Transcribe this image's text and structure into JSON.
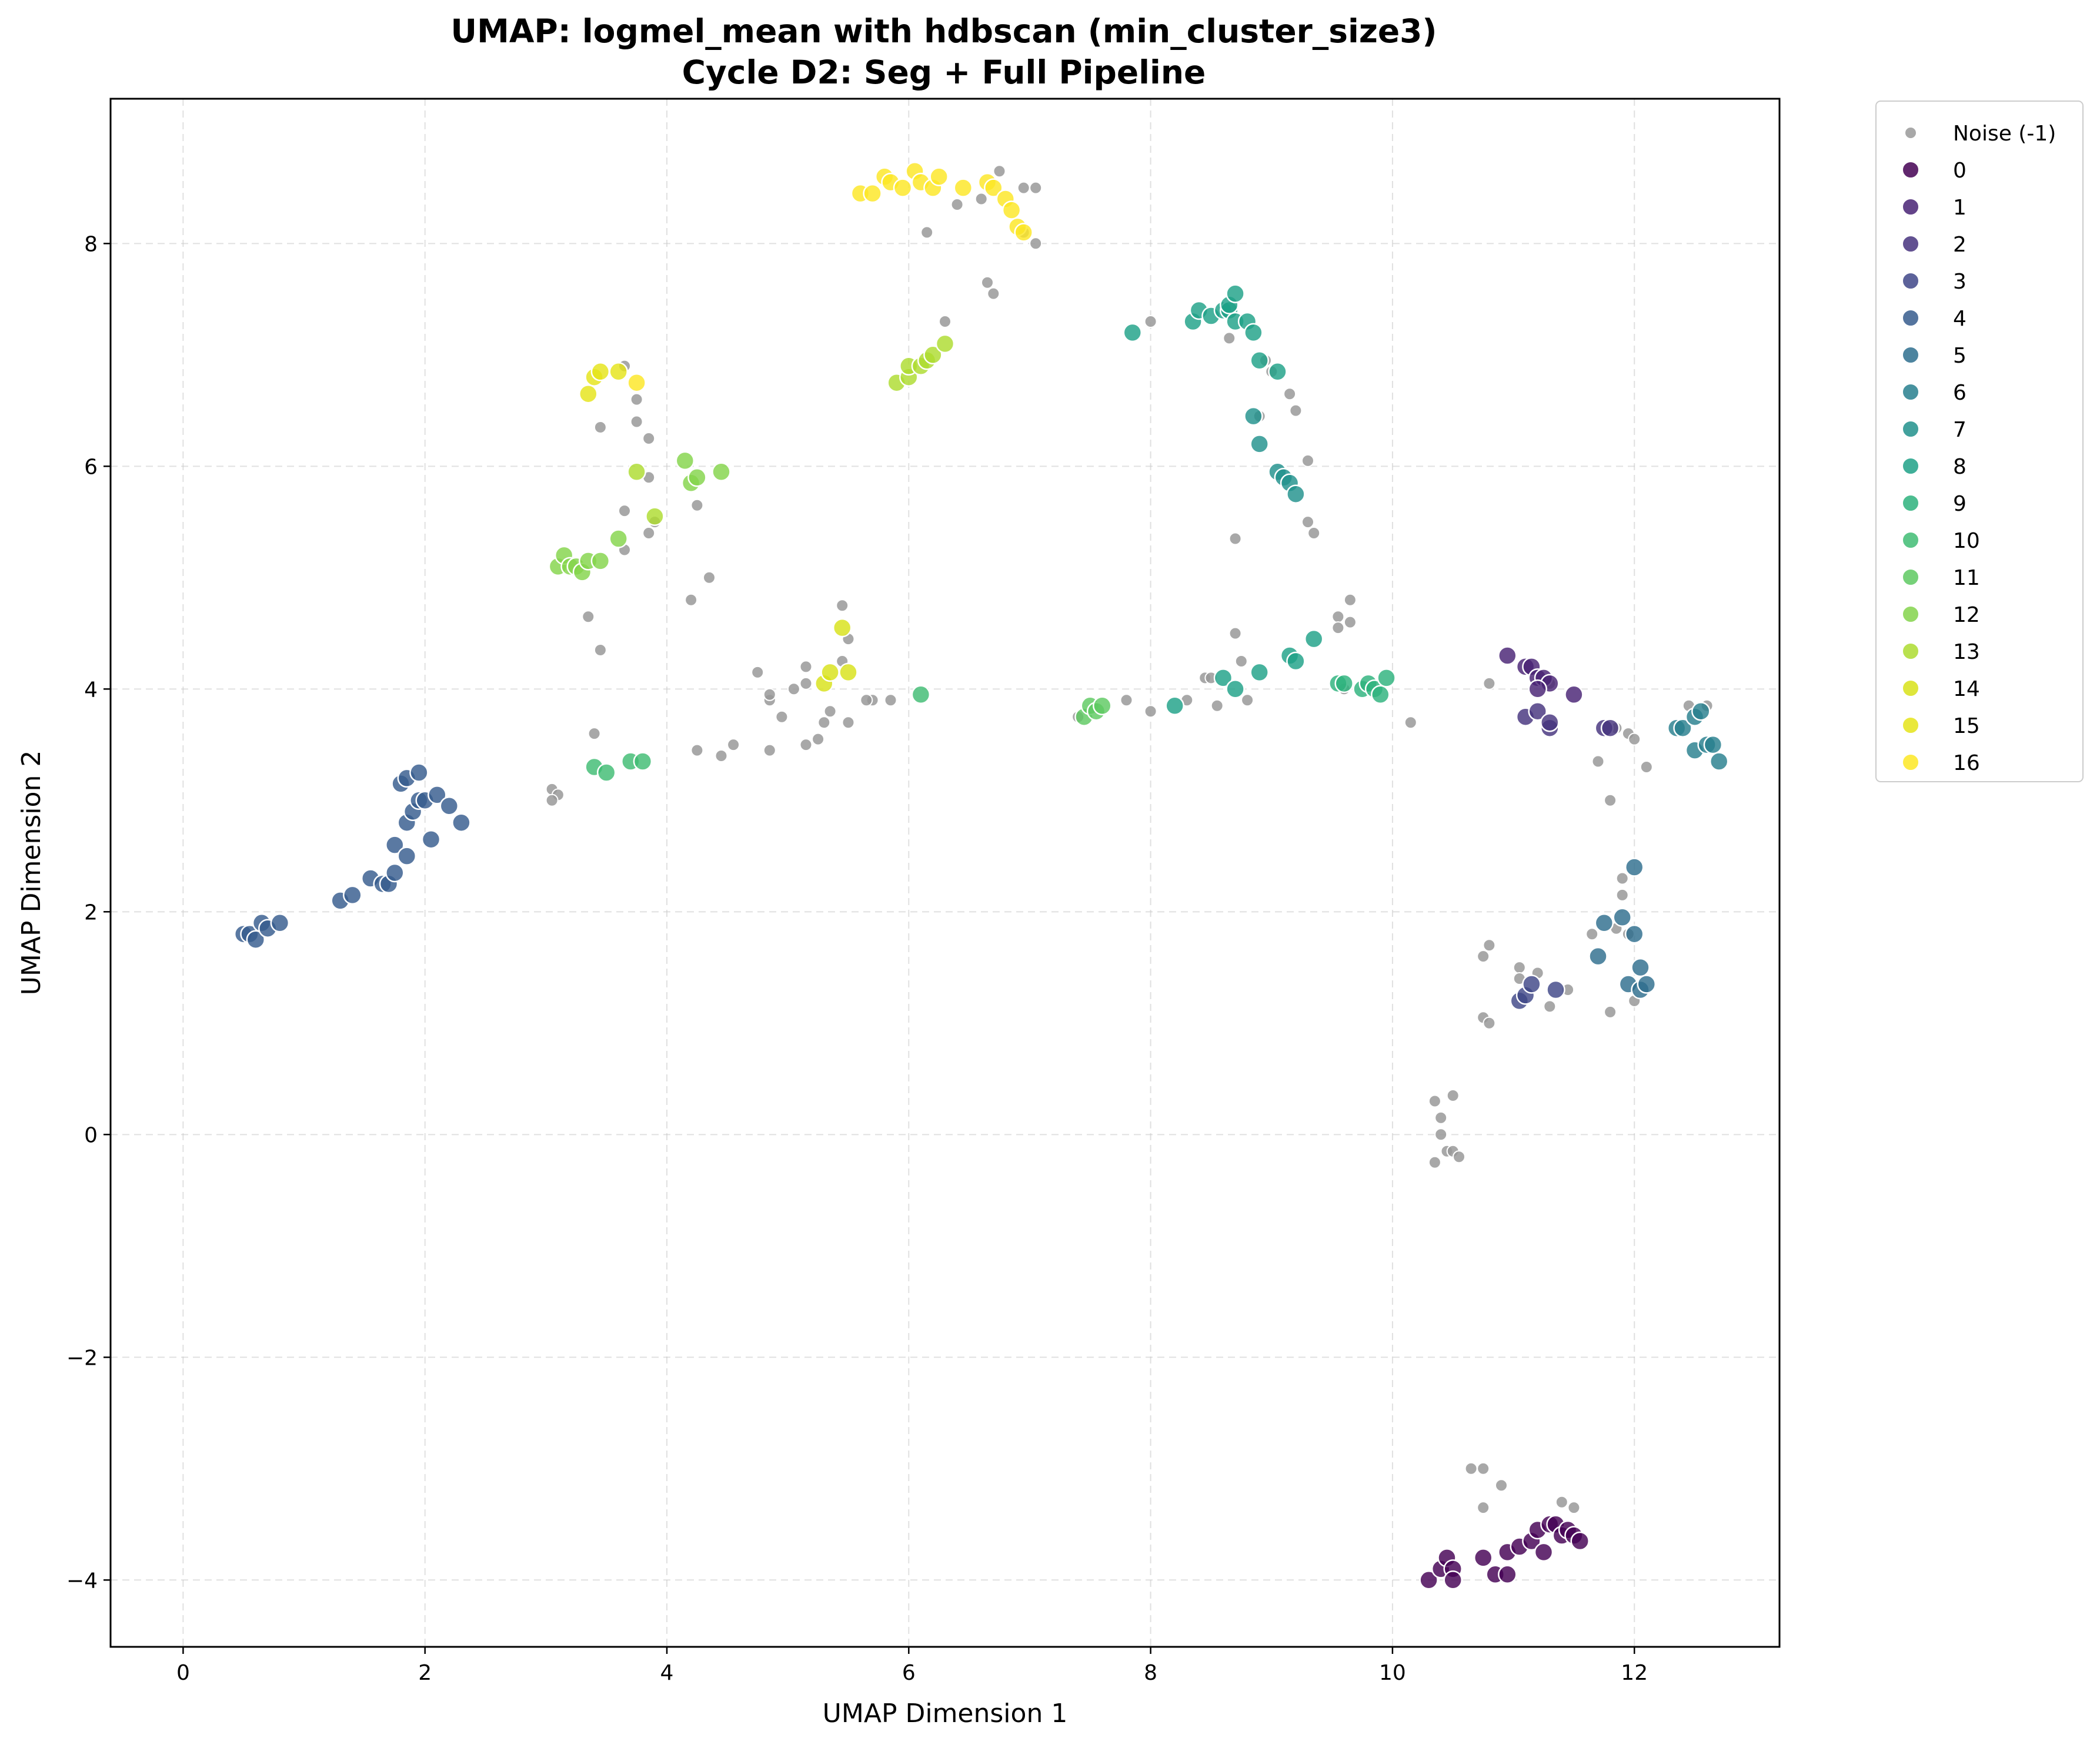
{
  "chart_data": {
    "type": "scatter",
    "title": "UMAP: logmel_mean with hdbscan (min_cluster_size3)",
    "subtitle": "Cycle D2: Seg + Full Pipeline",
    "xlabel": "UMAP Dimension 1",
    "ylabel": "UMAP Dimension 2",
    "xlim": [
      -0.6,
      13.2
    ],
    "ylim": [
      -4.6,
      9.3
    ],
    "xticks": [
      0,
      2,
      4,
      6,
      8,
      10,
      12
    ],
    "yticks": [
      -4,
      -2,
      0,
      2,
      4,
      6,
      8
    ],
    "grid": true,
    "legend_position": "outside-right",
    "series": [
      {
        "name": "Noise (-1)",
        "color": "#999999",
        "points": [
          [
            6.75,
            8.65
          ],
          [
            6.95,
            8.5
          ],
          [
            7.05,
            8.5
          ],
          [
            6.6,
            8.4
          ],
          [
            6.4,
            8.35
          ],
          [
            6.15,
            8.1
          ],
          [
            6.95,
            8.1
          ],
          [
            7.05,
            8.0
          ],
          [
            6.65,
            7.65
          ],
          [
            6.7,
            7.55
          ],
          [
            6.3,
            7.3
          ],
          [
            8.0,
            7.3
          ],
          [
            8.65,
            7.15
          ],
          [
            8.95,
            6.95
          ],
          [
            9.0,
            6.85
          ],
          [
            9.15,
            6.65
          ],
          [
            9.2,
            6.5
          ],
          [
            8.9,
            6.45
          ],
          [
            9.3,
            6.05
          ],
          [
            9.3,
            5.5
          ],
          [
            9.35,
            5.4
          ],
          [
            8.7,
            5.35
          ],
          [
            3.65,
            6.9
          ],
          [
            3.75,
            6.6
          ],
          [
            3.75,
            6.4
          ],
          [
            3.45,
            6.35
          ],
          [
            3.85,
            6.25
          ],
          [
            3.85,
            5.9
          ],
          [
            3.65,
            5.6
          ],
          [
            3.9,
            5.5
          ],
          [
            3.85,
            5.4
          ],
          [
            3.65,
            5.25
          ],
          [
            4.25,
            5.65
          ],
          [
            4.35,
            5.0
          ],
          [
            4.2,
            4.8
          ],
          [
            3.35,
            4.65
          ],
          [
            3.45,
            4.35
          ],
          [
            3.4,
            3.6
          ],
          [
            3.05,
            3.1
          ],
          [
            3.1,
            3.05
          ],
          [
            3.05,
            3.0
          ],
          [
            5.45,
            4.75
          ],
          [
            5.5,
            4.45
          ],
          [
            5.45,
            4.25
          ],
          [
            5.15,
            4.2
          ],
          [
            4.75,
            4.15
          ],
          [
            5.15,
            4.05
          ],
          [
            5.05,
            4.0
          ],
          [
            4.85,
            3.9
          ],
          [
            4.85,
            3.95
          ],
          [
            4.95,
            3.75
          ],
          [
            5.35,
            3.8
          ],
          [
            5.3,
            3.7
          ],
          [
            5.5,
            3.7
          ],
          [
            5.7,
            3.9
          ],
          [
            5.85,
            3.9
          ],
          [
            4.25,
            3.45
          ],
          [
            4.45,
            3.4
          ],
          [
            4.55,
            3.5
          ],
          [
            4.85,
            3.45
          ],
          [
            5.15,
            3.5
          ],
          [
            5.25,
            3.55
          ],
          [
            5.65,
            3.9
          ],
          [
            7.4,
            3.75
          ],
          [
            7.8,
            3.9
          ],
          [
            8.0,
            3.8
          ],
          [
            8.3,
            3.9
          ],
          [
            8.45,
            4.1
          ],
          [
            8.5,
            4.1
          ],
          [
            8.55,
            3.85
          ],
          [
            8.7,
            4.5
          ],
          [
            8.75,
            4.25
          ],
          [
            8.8,
            3.9
          ],
          [
            9.65,
            4.8
          ],
          [
            9.55,
            4.65
          ],
          [
            9.55,
            4.55
          ],
          [
            9.65,
            4.6
          ],
          [
            9.6,
            4.0
          ],
          [
            10.15,
            3.7
          ],
          [
            10.8,
            4.05
          ],
          [
            11.3,
            4.05
          ],
          [
            11.7,
            3.35
          ],
          [
            11.8,
            3.0
          ],
          [
            11.85,
            3.65
          ],
          [
            11.95,
            3.6
          ],
          [
            12.0,
            3.55
          ],
          [
            12.1,
            3.3
          ],
          [
            12.45,
            3.85
          ],
          [
            12.6,
            3.85
          ],
          [
            11.9,
            2.3
          ],
          [
            11.9,
            2.15
          ],
          [
            11.95,
            1.8
          ],
          [
            11.85,
            1.85
          ],
          [
            11.65,
            1.8
          ],
          [
            10.75,
            1.6
          ],
          [
            10.8,
            1.7
          ],
          [
            11.05,
            1.5
          ],
          [
            11.2,
            1.45
          ],
          [
            11.05,
            1.4
          ],
          [
            11.45,
            1.3
          ],
          [
            11.3,
            1.15
          ],
          [
            10.75,
            1.05
          ],
          [
            10.8,
            1.0
          ],
          [
            11.8,
            1.1
          ],
          [
            12.0,
            1.2
          ],
          [
            10.35,
            0.3
          ],
          [
            10.5,
            0.35
          ],
          [
            10.4,
            0.15
          ],
          [
            10.4,
            0.0
          ],
          [
            10.45,
            -0.15
          ],
          [
            10.5,
            -0.15
          ],
          [
            10.55,
            -0.2
          ],
          [
            10.35,
            -0.25
          ],
          [
            10.65,
            -3.0
          ],
          [
            10.75,
            -3.0
          ],
          [
            10.9,
            -3.15
          ],
          [
            10.75,
            -3.35
          ],
          [
            11.4,
            -3.3
          ],
          [
            11.5,
            -3.35
          ]
        ]
      },
      {
        "name": "0",
        "color": "#440154",
        "points": [
          [
            10.3,
            -4.0
          ],
          [
            10.4,
            -3.9
          ],
          [
            10.45,
            -3.8
          ],
          [
            10.5,
            -3.9
          ],
          [
            10.5,
            -4.0
          ],
          [
            10.75,
            -3.8
          ],
          [
            10.85,
            -3.95
          ],
          [
            10.95,
            -3.75
          ],
          [
            10.95,
            -3.95
          ],
          [
            11.05,
            -3.7
          ],
          [
            11.15,
            -3.65
          ],
          [
            11.2,
            -3.55
          ],
          [
            11.25,
            -3.75
          ],
          [
            11.3,
            -3.5
          ],
          [
            11.35,
            -3.5
          ],
          [
            11.4,
            -3.6
          ],
          [
            11.45,
            -3.55
          ],
          [
            11.5,
            -3.6
          ],
          [
            11.55,
            -3.65
          ]
        ]
      },
      {
        "name": "1",
        "color": "#482274",
        "points": [
          [
            10.95,
            4.3
          ],
          [
            11.1,
            4.2
          ],
          [
            11.15,
            4.2
          ],
          [
            11.2,
            4.1
          ],
          [
            11.25,
            4.1
          ],
          [
            11.3,
            4.05
          ],
          [
            11.2,
            4.0
          ],
          [
            11.5,
            3.95
          ]
        ]
      },
      {
        "name": "2",
        "color": "#46337e",
        "points": [
          [
            11.1,
            3.75
          ],
          [
            11.2,
            3.8
          ],
          [
            11.3,
            3.65
          ],
          [
            11.3,
            3.7
          ],
          [
            11.75,
            3.65
          ],
          [
            11.8,
            3.65
          ]
        ]
      },
      {
        "name": "3",
        "color": "#3f4788",
        "points": [
          [
            11.05,
            1.2
          ],
          [
            11.1,
            1.25
          ],
          [
            11.15,
            1.35
          ],
          [
            11.35,
            1.3
          ]
        ]
      },
      {
        "name": "4",
        "color": "#365c8d",
        "points": [
          [
            0.5,
            1.8
          ],
          [
            0.55,
            1.8
          ],
          [
            0.6,
            1.75
          ],
          [
            0.65,
            1.9
          ],
          [
            0.7,
            1.85
          ],
          [
            0.8,
            1.9
          ],
          [
            1.3,
            2.1
          ],
          [
            1.4,
            2.15
          ],
          [
            1.55,
            2.3
          ],
          [
            1.65,
            2.25
          ],
          [
            1.7,
            2.25
          ],
          [
            1.75,
            2.35
          ],
          [
            1.75,
            2.6
          ],
          [
            1.85,
            2.5
          ],
          [
            1.85,
            2.8
          ],
          [
            1.9,
            2.9
          ],
          [
            1.95,
            3.0
          ],
          [
            2.0,
            3.0
          ],
          [
            2.05,
            2.65
          ],
          [
            2.1,
            3.05
          ],
          [
            1.8,
            3.15
          ],
          [
            1.85,
            3.2
          ],
          [
            1.95,
            3.25
          ],
          [
            2.2,
            2.95
          ],
          [
            2.3,
            2.8
          ]
        ]
      },
      {
        "name": "5",
        "color": "#2e6e8e",
        "points": [
          [
            11.7,
            1.6
          ],
          [
            11.75,
            1.9
          ],
          [
            11.9,
            1.95
          ],
          [
            12.0,
            2.4
          ],
          [
            12.0,
            1.8
          ],
          [
            12.05,
            1.5
          ],
          [
            11.95,
            1.35
          ],
          [
            12.05,
            1.3
          ],
          [
            12.1,
            1.35
          ]
        ]
      },
      {
        "name": "6",
        "color": "#277f8e",
        "points": [
          [
            12.35,
            3.65
          ],
          [
            12.4,
            3.65
          ],
          [
            12.5,
            3.75
          ],
          [
            12.55,
            3.8
          ],
          [
            12.5,
            3.45
          ],
          [
            12.6,
            3.5
          ],
          [
            12.65,
            3.5
          ],
          [
            12.7,
            3.35
          ]
        ]
      },
      {
        "name": "7",
        "color": "#21918c",
        "points": [
          [
            8.85,
            6.45
          ],
          [
            8.9,
            6.2
          ],
          [
            9.05,
            5.95
          ],
          [
            9.1,
            5.9
          ],
          [
            9.15,
            5.85
          ],
          [
            9.2,
            5.75
          ]
        ]
      },
      {
        "name": "8",
        "color": "#1fa187",
        "points": [
          [
            7.85,
            7.2
          ],
          [
            8.35,
            7.3
          ],
          [
            8.4,
            7.4
          ],
          [
            8.5,
            7.35
          ],
          [
            8.6,
            7.4
          ],
          [
            8.65,
            7.4
          ],
          [
            8.65,
            7.45
          ],
          [
            8.7,
            7.55
          ],
          [
            8.7,
            7.3
          ],
          [
            8.8,
            7.3
          ],
          [
            8.85,
            7.2
          ],
          [
            8.9,
            6.95
          ],
          [
            9.05,
            6.85
          ],
          [
            9.15,
            4.3
          ],
          [
            9.2,
            4.25
          ],
          [
            9.35,
            4.45
          ],
          [
            8.6,
            4.1
          ],
          [
            8.7,
            4.0
          ],
          [
            8.9,
            4.15
          ],
          [
            8.2,
            3.85
          ]
        ]
      },
      {
        "name": "9",
        "color": "#2db27d",
        "points": [
          [
            9.55,
            4.05
          ],
          [
            9.6,
            4.05
          ],
          [
            9.75,
            4.0
          ],
          [
            9.8,
            4.05
          ],
          [
            9.85,
            4.0
          ],
          [
            9.95,
            4.1
          ],
          [
            9.9,
            3.95
          ]
        ]
      },
      {
        "name": "10",
        "color": "#3fbc73",
        "points": [
          [
            3.4,
            3.3
          ],
          [
            3.5,
            3.25
          ],
          [
            3.7,
            3.35
          ],
          [
            3.8,
            3.35
          ],
          [
            6.1,
            3.95
          ]
        ]
      },
      {
        "name": "11",
        "color": "#5ec962",
        "points": [
          [
            7.45,
            3.75
          ],
          [
            7.5,
            3.85
          ],
          [
            7.55,
            3.8
          ],
          [
            7.6,
            3.85
          ]
        ]
      },
      {
        "name": "12",
        "color": "#84d44b",
        "points": [
          [
            3.1,
            5.1
          ],
          [
            3.15,
            5.2
          ],
          [
            3.2,
            5.1
          ],
          [
            3.25,
            5.1
          ],
          [
            3.3,
            5.05
          ],
          [
            3.35,
            5.15
          ],
          [
            3.45,
            5.15
          ],
          [
            3.6,
            5.35
          ],
          [
            4.15,
            6.05
          ],
          [
            4.2,
            5.85
          ],
          [
            4.25,
            5.9
          ],
          [
            4.45,
            5.95
          ]
        ]
      },
      {
        "name": "13",
        "color": "#addc30",
        "points": [
          [
            3.75,
            5.95
          ],
          [
            3.9,
            5.55
          ],
          [
            5.9,
            6.75
          ],
          [
            6.0,
            6.8
          ],
          [
            6.0,
            6.9
          ],
          [
            6.1,
            6.9
          ],
          [
            6.15,
            6.95
          ],
          [
            6.2,
            7.0
          ],
          [
            6.3,
            7.1
          ]
        ]
      },
      {
        "name": "14",
        "color": "#d8e219",
        "points": [
          [
            5.3,
            4.05
          ],
          [
            5.35,
            4.15
          ],
          [
            5.45,
            4.55
          ],
          [
            5.5,
            4.15
          ]
        ]
      },
      {
        "name": "15",
        "color": "#e5e419",
        "points": [
          [
            3.35,
            6.65
          ],
          [
            3.4,
            6.8
          ],
          [
            3.45,
            6.85
          ],
          [
            3.6,
            6.85
          ]
        ]
      },
      {
        "name": "16",
        "color": "#fde725",
        "points": [
          [
            3.75,
            6.75
          ],
          [
            5.6,
            8.45
          ],
          [
            5.7,
            8.45
          ],
          [
            5.8,
            8.6
          ],
          [
            5.85,
            8.55
          ],
          [
            5.95,
            8.5
          ],
          [
            6.05,
            8.65
          ],
          [
            6.1,
            8.55
          ],
          [
            6.2,
            8.5
          ],
          [
            6.25,
            8.6
          ],
          [
            6.45,
            8.5
          ],
          [
            6.65,
            8.55
          ],
          [
            6.7,
            8.5
          ],
          [
            6.8,
            8.4
          ],
          [
            6.85,
            8.3
          ],
          [
            6.9,
            8.15
          ],
          [
            6.95,
            8.1
          ]
        ]
      }
    ]
  }
}
